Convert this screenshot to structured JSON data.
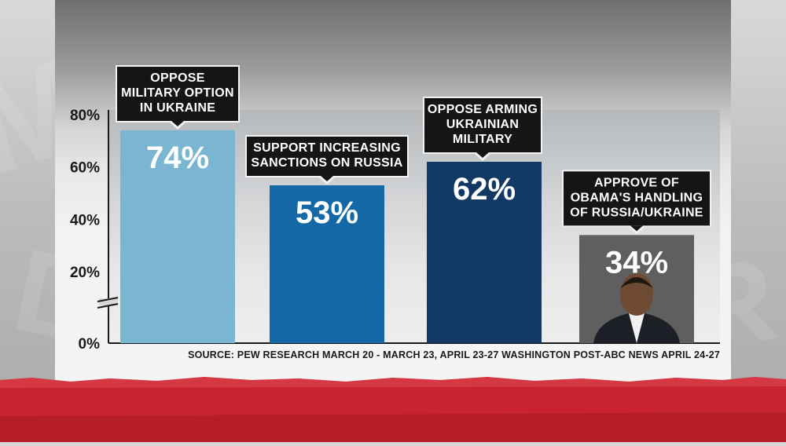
{
  "chart_data": {
    "type": "bar",
    "categories": [
      "OPPOSE MILITARY OPTION IN UKRAINE",
      "SUPPORT INCREASING SANCTIONS ON RUSSIA",
      "OPPOSE ARMING UKRAINIAN MILITARY",
      "APPROVE OF OBAMA'S HANDLING OF RUSSIA/UKRAINE"
    ],
    "callout_lines": [
      [
        "OPPOSE",
        "MILITARY OPTION",
        "IN UKRAINE"
      ],
      [
        "SUPPORT INCREASING",
        "SANCTIONS ON RUSSIA"
      ],
      [
        "OPPOSE ARMING",
        "UKRAINIAN",
        "MILITARY"
      ],
      [
        "APPROVE OF",
        "OBAMA'S HANDLING",
        "OF RUSSIA/UKRAINE"
      ]
    ],
    "values": [
      74,
      53,
      62,
      34
    ],
    "value_labels": [
      "74%",
      "53%",
      "62%",
      "34%"
    ],
    "bar_colors": [
      "#7ab6d2",
      "#1468a6",
      "#113963",
      "#5f5f5f"
    ],
    "y_ticks": [
      0,
      20,
      40,
      60,
      80
    ],
    "y_tick_labels": [
      "0%",
      "20%",
      "40%",
      "60%",
      "80%"
    ],
    "ylim": [
      0,
      80
    ],
    "axis_break": true,
    "grid": false,
    "title": "",
    "xlabel": "",
    "ylabel": ""
  },
  "source": "SOURCE: PEW RESEARCH MARCH 20 - MARCH 23, APRIL 23-27 WASHINGTON POST-ABC NEWS  APRIL 24-27",
  "colors": {
    "callout_bg": "#151515",
    "accent_red": "#c8232f",
    "text_dark": "#1a1a1a"
  },
  "icons": {
    "portrait": "obama-portrait-icon"
  }
}
